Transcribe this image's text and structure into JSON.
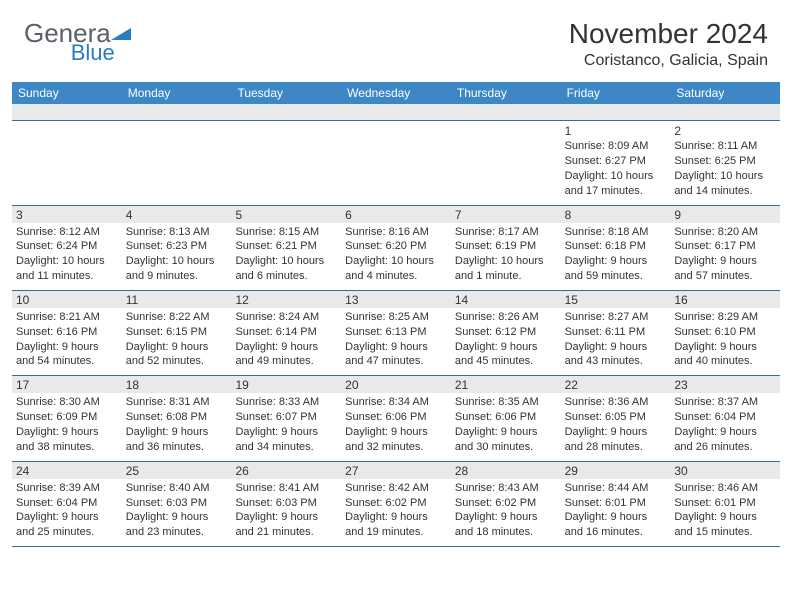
{
  "logo": {
    "part1": "Gener",
    "part2": "a",
    "part3": "l",
    "blue": "Blue"
  },
  "title": "November 2024",
  "location": "Coristanco, Galicia, Spain",
  "weekday_bg": "#3d87c7",
  "weekday_fg": "#ffffff",
  "gray_bg": "#e7e9eb",
  "border_color": "#2f6aa0",
  "weekdays": [
    "Sunday",
    "Monday",
    "Tuesday",
    "Wednesday",
    "Thursday",
    "Friday",
    "Saturday"
  ],
  "weeks": [
    [
      null,
      null,
      null,
      null,
      null,
      {
        "n": "1",
        "sr": "8:09 AM",
        "ss": "6:27 PM",
        "dl": "10 hours and 17 minutes."
      },
      {
        "n": "2",
        "sr": "8:11 AM",
        "ss": "6:25 PM",
        "dl": "10 hours and 14 minutes."
      }
    ],
    [
      {
        "n": "3",
        "sr": "8:12 AM",
        "ss": "6:24 PM",
        "dl": "10 hours and 11 minutes."
      },
      {
        "n": "4",
        "sr": "8:13 AM",
        "ss": "6:23 PM",
        "dl": "10 hours and 9 minutes."
      },
      {
        "n": "5",
        "sr": "8:15 AM",
        "ss": "6:21 PM",
        "dl": "10 hours and 6 minutes."
      },
      {
        "n": "6",
        "sr": "8:16 AM",
        "ss": "6:20 PM",
        "dl": "10 hours and 4 minutes."
      },
      {
        "n": "7",
        "sr": "8:17 AM",
        "ss": "6:19 PM",
        "dl": "10 hours and 1 minute."
      },
      {
        "n": "8",
        "sr": "8:18 AM",
        "ss": "6:18 PM",
        "dl": "9 hours and 59 minutes."
      },
      {
        "n": "9",
        "sr": "8:20 AM",
        "ss": "6:17 PM",
        "dl": "9 hours and 57 minutes."
      }
    ],
    [
      {
        "n": "10",
        "sr": "8:21 AM",
        "ss": "6:16 PM",
        "dl": "9 hours and 54 minutes."
      },
      {
        "n": "11",
        "sr": "8:22 AM",
        "ss": "6:15 PM",
        "dl": "9 hours and 52 minutes."
      },
      {
        "n": "12",
        "sr": "8:24 AM",
        "ss": "6:14 PM",
        "dl": "9 hours and 49 minutes."
      },
      {
        "n": "13",
        "sr": "8:25 AM",
        "ss": "6:13 PM",
        "dl": "9 hours and 47 minutes."
      },
      {
        "n": "14",
        "sr": "8:26 AM",
        "ss": "6:12 PM",
        "dl": "9 hours and 45 minutes."
      },
      {
        "n": "15",
        "sr": "8:27 AM",
        "ss": "6:11 PM",
        "dl": "9 hours and 43 minutes."
      },
      {
        "n": "16",
        "sr": "8:29 AM",
        "ss": "6:10 PM",
        "dl": "9 hours and 40 minutes."
      }
    ],
    [
      {
        "n": "17",
        "sr": "8:30 AM",
        "ss": "6:09 PM",
        "dl": "9 hours and 38 minutes."
      },
      {
        "n": "18",
        "sr": "8:31 AM",
        "ss": "6:08 PM",
        "dl": "9 hours and 36 minutes."
      },
      {
        "n": "19",
        "sr": "8:33 AM",
        "ss": "6:07 PM",
        "dl": "9 hours and 34 minutes."
      },
      {
        "n": "20",
        "sr": "8:34 AM",
        "ss": "6:06 PM",
        "dl": "9 hours and 32 minutes."
      },
      {
        "n": "21",
        "sr": "8:35 AM",
        "ss": "6:06 PM",
        "dl": "9 hours and 30 minutes."
      },
      {
        "n": "22",
        "sr": "8:36 AM",
        "ss": "6:05 PM",
        "dl": "9 hours and 28 minutes."
      },
      {
        "n": "23",
        "sr": "8:37 AM",
        "ss": "6:04 PM",
        "dl": "9 hours and 26 minutes."
      }
    ],
    [
      {
        "n": "24",
        "sr": "8:39 AM",
        "ss": "6:04 PM",
        "dl": "9 hours and 25 minutes."
      },
      {
        "n": "25",
        "sr": "8:40 AM",
        "ss": "6:03 PM",
        "dl": "9 hours and 23 minutes."
      },
      {
        "n": "26",
        "sr": "8:41 AM",
        "ss": "6:03 PM",
        "dl": "9 hours and 21 minutes."
      },
      {
        "n": "27",
        "sr": "8:42 AM",
        "ss": "6:02 PM",
        "dl": "9 hours and 19 minutes."
      },
      {
        "n": "28",
        "sr": "8:43 AM",
        "ss": "6:02 PM",
        "dl": "9 hours and 18 minutes."
      },
      {
        "n": "29",
        "sr": "8:44 AM",
        "ss": "6:01 PM",
        "dl": "9 hours and 16 minutes."
      },
      {
        "n": "30",
        "sr": "8:46 AM",
        "ss": "6:01 PM",
        "dl": "9 hours and 15 minutes."
      }
    ]
  ],
  "labels": {
    "sunrise": "Sunrise: ",
    "sunset": "Sunset: ",
    "daylight": "Daylight: "
  }
}
